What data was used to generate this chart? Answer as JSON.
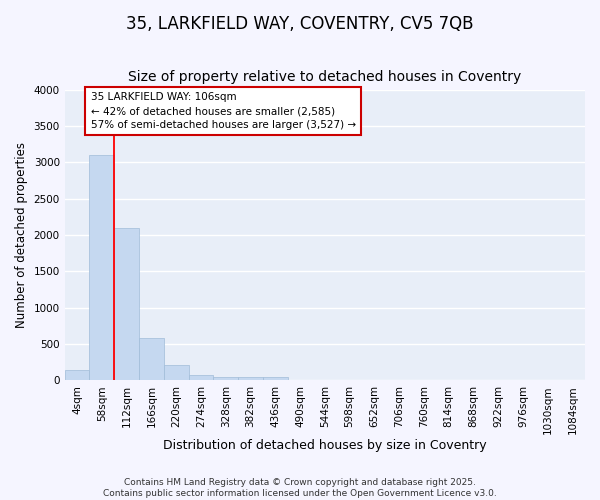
{
  "title": "35, LARKFIELD WAY, COVENTRY, CV5 7QB",
  "subtitle": "Size of property relative to detached houses in Coventry",
  "xlabel": "Distribution of detached houses by size in Coventry",
  "ylabel": "Number of detached properties",
  "bar_labels": [
    "4sqm",
    "58sqm",
    "112sqm",
    "166sqm",
    "220sqm",
    "274sqm",
    "328sqm",
    "382sqm",
    "436sqm",
    "490sqm",
    "544sqm",
    "598sqm",
    "652sqm",
    "706sqm",
    "760sqm",
    "814sqm",
    "868sqm",
    "922sqm",
    "976sqm",
    "1030sqm",
    "1084sqm"
  ],
  "bar_values": [
    140,
    3100,
    2100,
    580,
    215,
    80,
    50,
    42,
    42,
    0,
    0,
    0,
    0,
    0,
    0,
    0,
    0,
    0,
    0,
    0,
    0
  ],
  "bar_color": "#c5d8f0",
  "bar_edgecolor": "#a0bcd8",
  "background_color": "#e8eef8",
  "grid_color": "#ffffff",
  "red_line_x": 2,
  "annotation_text": "35 LARKFIELD WAY: 106sqm\n← 42% of detached houses are smaller (2,585)\n57% of semi-detached houses are larger (3,527) →",
  "annotation_box_facecolor": "#ffffff",
  "annotation_box_edgecolor": "#cc0000",
  "ylim": [
    0,
    4000
  ],
  "yticks": [
    0,
    500,
    1000,
    1500,
    2000,
    2500,
    3000,
    3500,
    4000
  ],
  "footer_line1": "Contains HM Land Registry data © Crown copyright and database right 2025.",
  "footer_line2": "Contains public sector information licensed under the Open Government Licence v3.0.",
  "title_fontsize": 12,
  "subtitle_fontsize": 10,
  "tick_fontsize": 7.5,
  "ylabel_fontsize": 8.5,
  "xlabel_fontsize": 9,
  "annotation_fontsize": 7.5,
  "footer_fontsize": 6.5,
  "fig_facecolor": "#f5f5ff"
}
